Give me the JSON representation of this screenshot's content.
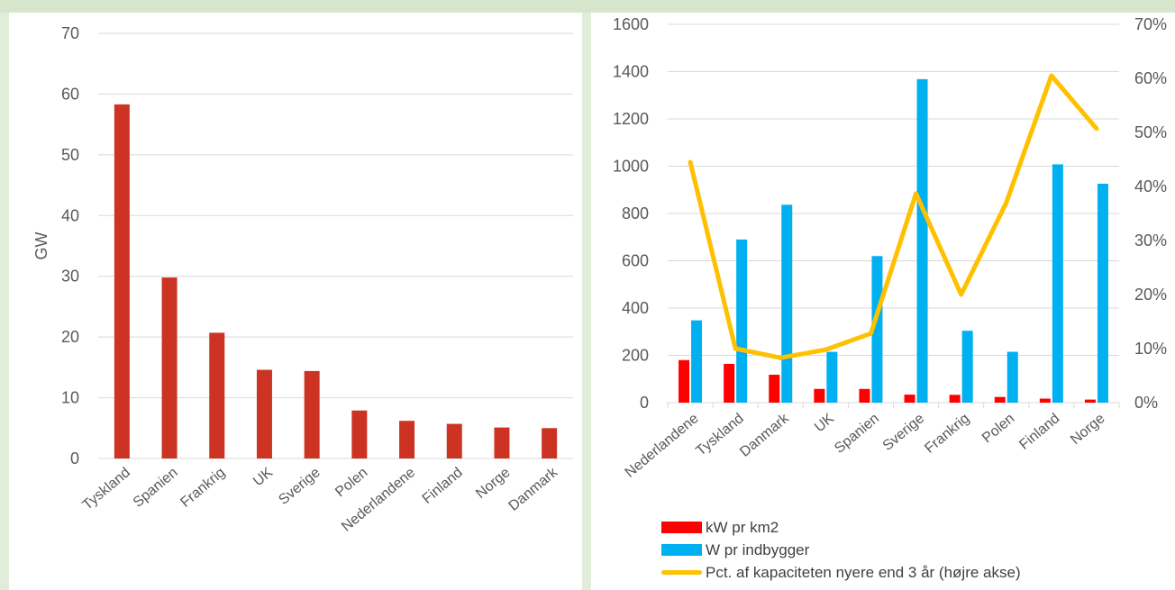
{
  "chart_data": [
    {
      "type": "bar",
      "categories": [
        "Tyskland",
        "Spanien",
        "Frankrig",
        "UK",
        "Sverige",
        "Polen",
        "Nederlandene",
        "Finland",
        "Norge",
        "Danmark"
      ],
      "series": [
        {
          "values": [
            58.3,
            29.8,
            20.7,
            14.6,
            14.4,
            7.9,
            6.2,
            5.7,
            5.1,
            5.0
          ],
          "color": "#cc3322"
        }
      ],
      "ylabel": "GW",
      "ylim": [
        0,
        70
      ],
      "yticks": [
        0,
        10,
        20,
        30,
        40,
        50,
        60,
        70
      ],
      "grid": true
    },
    {
      "type": "bar",
      "categories": [
        "Nederlandene",
        "Tyskland",
        "Danmark",
        "UK",
        "Spanien",
        "Sverige",
        "Frankrig",
        "Polen",
        "Finland",
        "Norge"
      ],
      "series": [
        {
          "name": "kW pr km2",
          "type": "bar",
          "axis": "left",
          "values": [
            180,
            164,
            118,
            58,
            58,
            34,
            33,
            24,
            17,
            13
          ],
          "color": "#ff0000"
        },
        {
          "name": "W pr indbygger",
          "type": "bar",
          "axis": "left",
          "values": [
            348,
            690,
            837,
            215,
            620,
            1368,
            304,
            215,
            1008,
            926
          ],
          "color": "#00b0f0"
        },
        {
          "name": "Pct. af kapaciteten nyere end 3 år (højre akse)",
          "type": "line",
          "axis": "right",
          "values": [
            0.445,
            0.1,
            0.083,
            0.098,
            0.128,
            0.387,
            0.2,
            0.37,
            0.605,
            0.507
          ],
          "color": "#ffc000"
        }
      ],
      "ylim": [
        0,
        1600
      ],
      "yticks": [
        0,
        200,
        400,
        600,
        800,
        1000,
        1200,
        1400,
        1600
      ],
      "y2lim": [
        0,
        0.7
      ],
      "y2ticks": [
        "0%",
        "10%",
        "20%",
        "30%",
        "40%",
        "50%",
        "60%",
        "70%"
      ],
      "grid": true,
      "legend": "bottom"
    }
  ]
}
